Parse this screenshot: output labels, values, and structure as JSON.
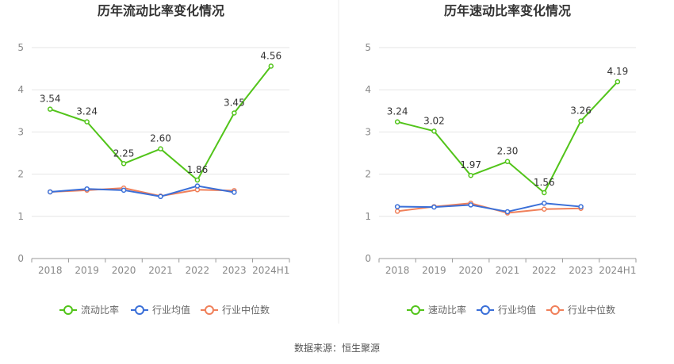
{
  "source": "数据来源：恒生聚源",
  "colors": {
    "company": "#52c41a",
    "industry_avg": "#3a6fd8",
    "industry_median": "#f0805a"
  },
  "chart_data": [
    {
      "type": "line",
      "title": "历年流动比率变化情况",
      "categories": [
        "2018",
        "2019",
        "2020",
        "2021",
        "2022",
        "2023",
        "2024H1"
      ],
      "ylim": [
        0,
        5
      ],
      "yticks": [
        "0",
        "1",
        "2",
        "3",
        "4",
        "5"
      ],
      "grid": true,
      "legend": "bottom",
      "series": [
        {
          "name": "流动比率",
          "color": "#52c41a",
          "values": [
            3.54,
            3.24,
            2.25,
            2.6,
            1.86,
            3.45,
            4.56
          ],
          "labels": [
            "3.54",
            "3.24",
            "2.25",
            "2.60",
            "1.86",
            "3.45",
            "4.56"
          ]
        },
        {
          "name": "行业均值",
          "color": "#3a6fd8",
          "values": [
            1.58,
            1.65,
            1.62,
            1.47,
            1.72,
            1.57,
            null
          ]
        },
        {
          "name": "行业中位数",
          "color": "#f0805a",
          "values": [
            1.58,
            1.62,
            1.67,
            1.48,
            1.63,
            1.61,
            null
          ]
        }
      ]
    },
    {
      "type": "line",
      "title": "历年速动比率变化情况",
      "categories": [
        "2018",
        "2019",
        "2020",
        "2021",
        "2022",
        "2023",
        "2024H1"
      ],
      "ylim": [
        0,
        5
      ],
      "yticks": [
        "0",
        "1",
        "2",
        "3",
        "4",
        "5"
      ],
      "grid": true,
      "legend": "bottom",
      "series": [
        {
          "name": "速动比率",
          "color": "#52c41a",
          "values": [
            3.24,
            3.02,
            1.97,
            2.3,
            1.56,
            3.26,
            4.19
          ],
          "labels": [
            "3.24",
            "3.02",
            "1.97",
            "2.30",
            "1.56",
            "3.26",
            "4.19"
          ]
        },
        {
          "name": "行业均值",
          "color": "#3a6fd8",
          "values": [
            1.23,
            1.22,
            1.27,
            1.11,
            1.31,
            1.23,
            null
          ]
        },
        {
          "name": "行业中位数",
          "color": "#f0805a",
          "values": [
            1.12,
            1.23,
            1.31,
            1.08,
            1.17,
            1.19,
            null
          ]
        }
      ]
    }
  ]
}
